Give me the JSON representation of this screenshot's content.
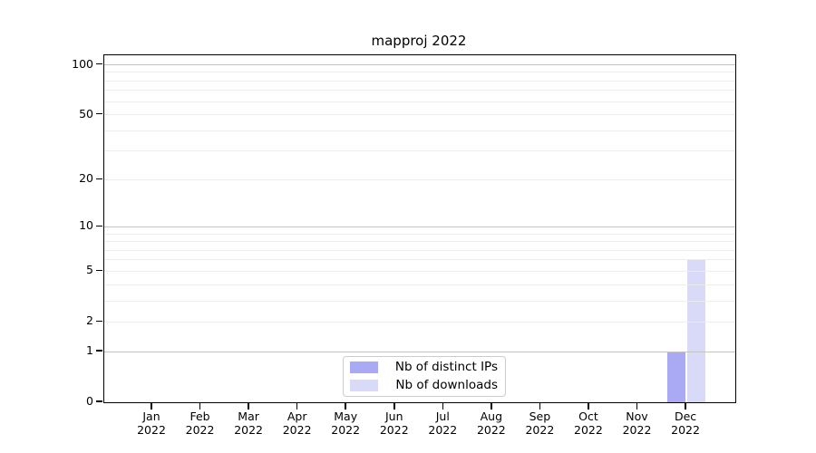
{
  "chart_data": {
    "type": "bar",
    "title": "mapproj 2022",
    "categories": [
      "Jan",
      "Feb",
      "Mar",
      "Apr",
      "May",
      "Jun",
      "Jul",
      "Aug",
      "Sep",
      "Oct",
      "Nov",
      "Dec"
    ],
    "year": "2022",
    "series": [
      {
        "name": "Nb of distinct IPs",
        "color": "#a9a9f4",
        "values": [
          0,
          0,
          0,
          0,
          0,
          0,
          0,
          0,
          0,
          0,
          0,
          1
        ]
      },
      {
        "name": "Nb of downloads",
        "color": "#d9d9f8",
        "values": [
          0,
          0,
          0,
          0,
          0,
          0,
          0,
          0,
          0,
          0,
          0,
          6
        ]
      }
    ],
    "yscale": "log1p",
    "ylim": [
      0,
      114
    ],
    "yticks": [
      0,
      1,
      2,
      5,
      10,
      20,
      50,
      100
    ],
    "gridlines": {
      "major": [
        1,
        10,
        100
      ],
      "minor": [
        2,
        3,
        4,
        5,
        6,
        7,
        8,
        9,
        20,
        30,
        40,
        50,
        60,
        70,
        80,
        90
      ],
      "major_color": "#c3c3c3",
      "minor_color": "#ececec"
    },
    "legend": {
      "position": "lower center"
    },
    "axis_color": "#000000",
    "background": "#ffffff"
  }
}
